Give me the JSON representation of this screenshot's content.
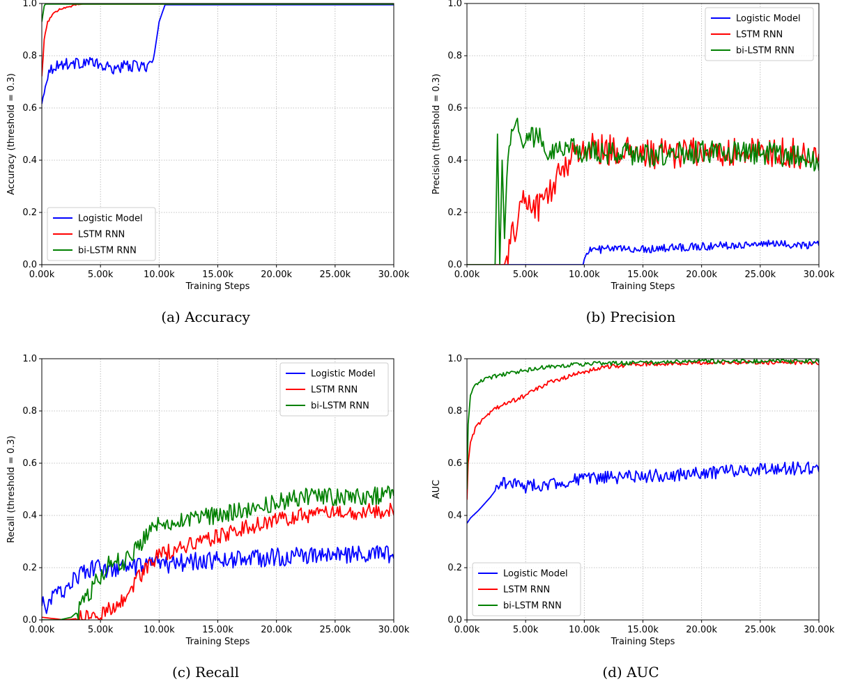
{
  "figure": {
    "colors": {
      "logistic": "#0000ff",
      "lstm": "#ff0000",
      "bilstm": "#008000",
      "grid": "#b0b0b0"
    },
    "captions": [
      "(a) Accuracy",
      "(b) Precision",
      "(c) Recall",
      "(d) AUC"
    ]
  },
  "chart_data": [
    {
      "type": "line",
      "title": "",
      "xlabel": "Training Steps",
      "ylabel": "Accuracy (threshold = 0.3)",
      "xlim": [
        0,
        30000
      ],
      "ylim": [
        0,
        1.0
      ],
      "x_ticks": [
        0,
        5000,
        10000,
        15000,
        20000,
        25000,
        30000
      ],
      "x_tick_labels": [
        "0.00k",
        "5.00k",
        "10.00k",
        "15.00k",
        "20.00k",
        "25.00k",
        "30.00k"
      ],
      "y_ticks": [
        0,
        0.2,
        0.4,
        0.6,
        0.8,
        1.0
      ],
      "y_tick_labels": [
        "0.0",
        "0.2",
        "0.4",
        "0.6",
        "0.8",
        "1.0"
      ],
      "grid": true,
      "legend_position": "lower-left",
      "series": [
        {
          "name": "Logistic Model",
          "color_key": "logistic",
          "x": [
            0,
            200,
            500,
            1000,
            2000,
            3000,
            4000,
            5000,
            6000,
            7000,
            8000,
            9000,
            9500,
            10000,
            10500,
            12000,
            15000,
            20000,
            25000,
            30000
          ],
          "y": [
            0.61,
            0.67,
            0.73,
            0.76,
            0.77,
            0.77,
            0.78,
            0.76,
            0.75,
            0.76,
            0.76,
            0.76,
            0.78,
            0.93,
            0.995,
            0.995,
            0.995,
            0.995,
            0.995,
            0.995
          ],
          "noise": 0.022,
          "noise_until": 9500
        },
        {
          "name": "LSTM RNN",
          "color_key": "lstm",
          "x": [
            0,
            200,
            500,
            1000,
            1500,
            2000,
            2500,
            3000,
            3500,
            30000
          ],
          "y": [
            0.72,
            0.86,
            0.93,
            0.96,
            0.98,
            0.985,
            0.99,
            0.995,
            0.998,
            0.998
          ],
          "noise": 0.004,
          "noise_until": 3000
        },
        {
          "name": "bi-LSTM RNN",
          "color_key": "bilstm",
          "x": [
            0,
            100,
            200,
            300,
            30000
          ],
          "y": [
            0.93,
            0.96,
            0.99,
            0.998,
            0.998
          ],
          "noise": 0,
          "noise_until": 0
        }
      ]
    },
    {
      "type": "line",
      "title": "",
      "xlabel": "Training Steps",
      "ylabel": "Precision (threshold = 0.3)",
      "xlim": [
        0,
        30000
      ],
      "ylim": [
        0,
        1.0
      ],
      "x_ticks": [
        0,
        5000,
        10000,
        15000,
        20000,
        25000,
        30000
      ],
      "x_tick_labels": [
        "0.00k",
        "5.00k",
        "10.00k",
        "15.00k",
        "20.00k",
        "25.00k",
        "30.00k"
      ],
      "y_ticks": [
        0,
        0.2,
        0.4,
        0.6,
        0.8,
        1.0
      ],
      "y_tick_labels": [
        "0.0",
        "0.2",
        "0.4",
        "0.6",
        "0.8",
        "1.0"
      ],
      "grid": true,
      "legend_position": "upper-right",
      "series": [
        {
          "name": "Logistic Model",
          "color_key": "logistic",
          "x": [
            0,
            9900,
            10000,
            10300,
            12000,
            15000,
            20000,
            25000,
            30000
          ],
          "y": [
            0.0,
            0.0,
            0.02,
            0.055,
            0.06,
            0.06,
            0.07,
            0.08,
            0.075
          ],
          "noise": 0.015,
          "noise_from": 10300
        },
        {
          "name": "LSTM RNN",
          "color_key": "lstm",
          "x": [
            0,
            3200,
            3500,
            4000,
            4500,
            5000,
            6000,
            7000,
            8000,
            9000,
            10000,
            12000,
            15000,
            20000,
            25000,
            30000
          ],
          "y": [
            0.0,
            0.0,
            0.05,
            0.12,
            0.22,
            0.25,
            0.22,
            0.27,
            0.36,
            0.42,
            0.45,
            0.44,
            0.42,
            0.43,
            0.43,
            0.42
          ],
          "noise": 0.06,
          "noise_from": 3500
        },
        {
          "name": "bi-LSTM RNN",
          "color_key": "bilstm",
          "x": [
            0,
            2400,
            2600,
            2800,
            3000,
            3200,
            3500,
            4000,
            5000,
            6000,
            7000,
            8000,
            10000,
            15000,
            20000,
            25000,
            30000
          ],
          "y": [
            0.0,
            0.0,
            0.5,
            0.0,
            0.4,
            0.1,
            0.45,
            0.55,
            0.47,
            0.5,
            0.44,
            0.45,
            0.43,
            0.42,
            0.43,
            0.43,
            0.4
          ],
          "noise": 0.045,
          "noise_from": 3500
        }
      ]
    },
    {
      "type": "line",
      "title": "",
      "xlabel": "Training Steps",
      "ylabel": "Recall (threshold = 0.3)",
      "xlim": [
        0,
        30000
      ],
      "ylim": [
        0,
        1.0
      ],
      "x_ticks": [
        0,
        5000,
        10000,
        15000,
        20000,
        25000,
        30000
      ],
      "x_tick_labels": [
        "0.00k",
        "5.00k",
        "10.00k",
        "15.00k",
        "20.00k",
        "25.00k",
        "30.00k"
      ],
      "y_ticks": [
        0,
        0.2,
        0.4,
        0.6,
        0.8,
        1.0
      ],
      "y_tick_labels": [
        "0.0",
        "0.2",
        "0.4",
        "0.6",
        "0.8",
        "1.0"
      ],
      "grid": true,
      "legend_position": "upper-right",
      "series": [
        {
          "name": "Logistic Model",
          "color_key": "logistic",
          "x": [
            0,
            500,
            1000,
            2000,
            3000,
            4000,
            5000,
            6000,
            7000,
            8000,
            10000,
            12000,
            15000,
            20000,
            25000,
            30000
          ],
          "y": [
            0.06,
            0.05,
            0.09,
            0.12,
            0.17,
            0.19,
            0.2,
            0.19,
            0.2,
            0.2,
            0.21,
            0.22,
            0.23,
            0.24,
            0.25,
            0.25
          ],
          "noise": 0.035,
          "noise_from": 0
        },
        {
          "name": "LSTM RNN",
          "color_key": "lstm",
          "x": [
            0,
            1000,
            2000,
            3000,
            4000,
            5000,
            6000,
            7000,
            8000,
            9000,
            10000,
            12000,
            15000,
            18000,
            20000,
            22000,
            25000,
            30000
          ],
          "y": [
            0.01,
            0.005,
            0.0,
            0.005,
            0.01,
            0.02,
            0.05,
            0.08,
            0.15,
            0.2,
            0.25,
            0.28,
            0.32,
            0.36,
            0.38,
            0.4,
            0.41,
            0.42
          ],
          "noise": 0.03,
          "noise_from": 3000
        },
        {
          "name": "bi-LSTM RNN",
          "color_key": "bilstm",
          "x": [
            0,
            1500,
            2500,
            3000,
            4000,
            5000,
            6000,
            7000,
            8000,
            9000,
            10000,
            12000,
            15000,
            18000,
            20000,
            22000,
            25000,
            30000
          ],
          "y": [
            0.0,
            0.0,
            0.01,
            0.03,
            0.1,
            0.17,
            0.23,
            0.22,
            0.27,
            0.33,
            0.38,
            0.38,
            0.4,
            0.43,
            0.45,
            0.47,
            0.47,
            0.48
          ],
          "noise": 0.035,
          "noise_from": 3000
        }
      ]
    },
    {
      "type": "line",
      "title": "",
      "xlabel": "Training Steps",
      "ylabel": "AUC",
      "xlim": [
        0,
        30000
      ],
      "ylim": [
        0,
        1.0
      ],
      "x_ticks": [
        0,
        5000,
        10000,
        15000,
        20000,
        25000,
        30000
      ],
      "x_tick_labels": [
        "0.00k",
        "5.00k",
        "10.00k",
        "15.00k",
        "20.00k",
        "25.00k",
        "30.00k"
      ],
      "y_ticks": [
        0,
        0.2,
        0.4,
        0.6,
        0.8,
        1.0
      ],
      "y_tick_labels": [
        "0.0",
        "0.2",
        "0.4",
        "0.6",
        "0.8",
        "1.0"
      ],
      "grid": true,
      "legend_position": "lower-left",
      "series": [
        {
          "name": "Logistic Model",
          "color_key": "logistic",
          "x": [
            0,
            300,
            1000,
            2000,
            3000,
            4000,
            5000,
            7000,
            10000,
            15000,
            20000,
            25000,
            30000
          ],
          "y": [
            0.37,
            0.39,
            0.42,
            0.47,
            0.53,
            0.52,
            0.51,
            0.52,
            0.54,
            0.55,
            0.56,
            0.58,
            0.58
          ],
          "noise": 0.025,
          "noise_from": 2500
        },
        {
          "name": "LSTM RNN",
          "color_key": "lstm",
          "x": [
            0,
            100,
            300,
            700,
            1500,
            2500,
            3500,
            5000,
            7000,
            10000,
            12000,
            15000,
            20000,
            25000,
            30000
          ],
          "y": [
            0.46,
            0.6,
            0.68,
            0.73,
            0.78,
            0.81,
            0.83,
            0.86,
            0.91,
            0.95,
            0.97,
            0.98,
            0.985,
            0.985,
            0.985
          ],
          "noise": 0.008,
          "noise_from": 500
        },
        {
          "name": "bi-LSTM RNN",
          "color_key": "bilstm",
          "x": [
            0,
            100,
            300,
            700,
            1500,
            3000,
            5000,
            7000,
            10000,
            15000,
            20000,
            30000
          ],
          "y": [
            0.5,
            0.75,
            0.86,
            0.9,
            0.92,
            0.94,
            0.955,
            0.97,
            0.98,
            0.985,
            0.99,
            0.99
          ],
          "noise": 0.008,
          "noise_from": 500
        }
      ]
    }
  ]
}
